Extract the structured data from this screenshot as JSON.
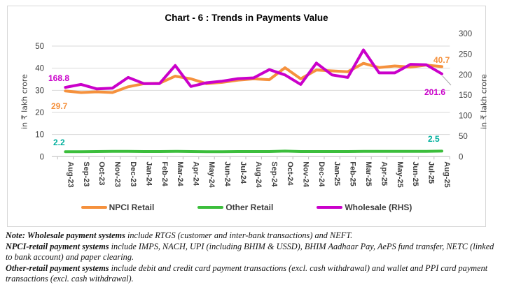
{
  "title": "Chart - 6 : Trends in Payments Value",
  "axes": {
    "left_title": "in ₹ lakh crore",
    "right_title": "in ₹ lakh crore",
    "left_ticks": [
      0,
      10,
      20,
      30,
      40,
      50
    ],
    "right_ticks": [
      0,
      50,
      100,
      150,
      200,
      250,
      300
    ]
  },
  "chart_data": {
    "type": "line",
    "title": "Chart - 6 : Trends in Payments Value",
    "xlabel": "",
    "ylabel_left": "in ₹ lakh crore",
    "ylabel_right": "in ₹ lakh crore",
    "ylim_left": [
      0,
      50
    ],
    "ylim_right": [
      0,
      300
    ],
    "grid": true,
    "legend_position": "bottom",
    "categories": [
      "Aug-23",
      "Sep-23",
      "Oct-23",
      "Nov-23",
      "Dec-23",
      "Jan-24",
      "Feb-24",
      "Mar-24",
      "Apr-24",
      "May-24",
      "Jun-24",
      "Jul-24",
      "Aug-24",
      "Sep-24",
      "Oct-24",
      "Nov-24",
      "Dec-24",
      "Jan-25",
      "Feb-25",
      "Mar-25",
      "Apr-25",
      "May-25",
      "Jun-25",
      "Jul-25",
      "Aug-25"
    ],
    "series": [
      {
        "name": "NPCI Retail",
        "axis": "left",
        "color": "#F5913D",
        "label_color": "#F5913D",
        "start_label": "29.7",
        "end_label": "40.7",
        "values": [
          29.7,
          29.0,
          29.3,
          29.0,
          31.6,
          33.0,
          33.2,
          36.4,
          35.2,
          33.0,
          33.6,
          34.6,
          35.2,
          34.8,
          40.2,
          35.2,
          39.2,
          38.8,
          38.4,
          42.2,
          40.3,
          41.0,
          40.5,
          41.4,
          40.7
        ]
      },
      {
        "name": "Other Retail",
        "axis": "left",
        "color": "#3CBE3C",
        "label_color": "#00AF9D",
        "start_label": "2.2",
        "end_label": "2.5",
        "values": [
          2.2,
          2.2,
          2.3,
          2.4,
          2.4,
          2.3,
          2.3,
          2.4,
          2.3,
          2.2,
          2.2,
          2.3,
          2.3,
          2.3,
          2.5,
          2.3,
          2.3,
          2.3,
          2.3,
          2.4,
          2.4,
          2.4,
          2.4,
          2.4,
          2.5
        ]
      },
      {
        "name": "Wholesale (RHS)",
        "axis": "right",
        "color": "#CA00CA",
        "label_color": "#CA00CA",
        "start_label": "168.8",
        "end_label": "201.6",
        "values": [
          168.8,
          176,
          165,
          167,
          193,
          178,
          178,
          222,
          171,
          180,
          184,
          190,
          192,
          212,
          199,
          176,
          228,
          199,
          193,
          260,
          204,
          204,
          225,
          224,
          201.6
        ]
      }
    ]
  },
  "notes": [
    {
      "bold": "Note: Wholesale payment systems",
      "text": " include RTGS (customer and inter-bank transactions) and NEFT."
    },
    {
      "bold": "NPCI-retail payment systems",
      "text": " include IMPS, NACH, UPI (including BHIM & USSD), BHIM Aadhaar Pay, AePS fund transfer, NETC (linked to bank account) and paper clearing."
    },
    {
      "bold": "Other-retail payment systems",
      "text": " include debit and credit card payment transactions (excl. cash withdrawal) and wallet and PPI card payment transactions (excl. cash withdrawal)."
    }
  ]
}
